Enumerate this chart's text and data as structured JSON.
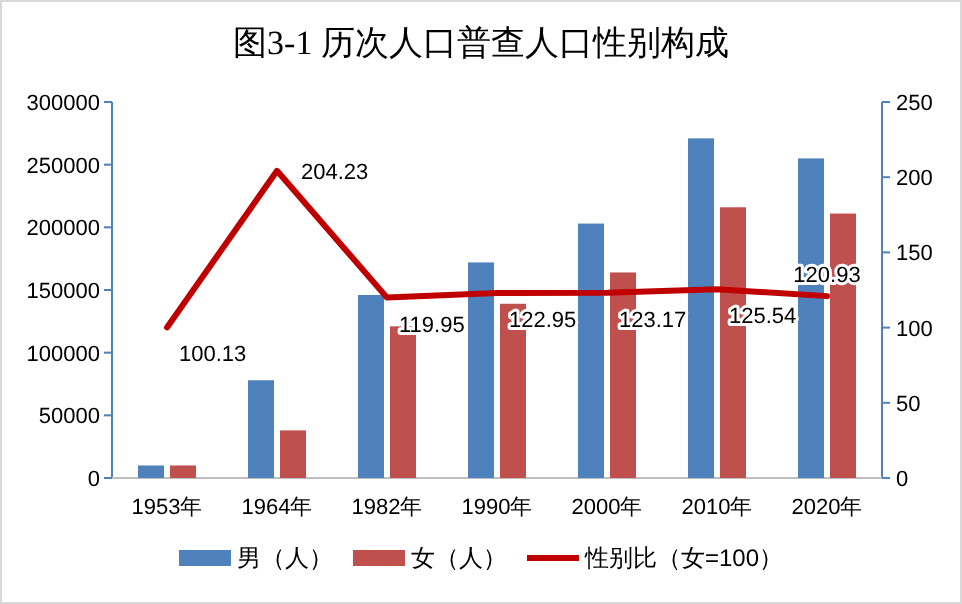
{
  "chart_data": {
    "type": "bar",
    "title": "图3-1 历次人口普查人口性别构成",
    "categories": [
      "1953年",
      "1964年",
      "1982年",
      "1990年",
      "2000年",
      "2010年",
      "2020年"
    ],
    "series": [
      {
        "name": "男（人）",
        "color": "#4f81bd",
        "values": [
          10000,
          78000,
          146000,
          172000,
          203000,
          271000,
          255000
        ]
      },
      {
        "name": "女（人）",
        "color": "#c0504d",
        "values": [
          10000,
          38000,
          121000,
          139000,
          164000,
          216000,
          211000
        ]
      },
      {
        "name": "性别比（女=100）",
        "type": "line",
        "axis": "y2",
        "color": "#c00000",
        "values": [
          100.13,
          204.23,
          119.95,
          122.95,
          123.17,
          125.54,
          120.93
        ],
        "value_labels": [
          "100.13",
          "204.23",
          "119.95",
          "122.95",
          "123.17",
          "125.54",
          "120.93"
        ]
      }
    ],
    "ylim": [
      0,
      300000
    ],
    "yticks": [
      0,
      50000,
      100000,
      150000,
      200000,
      250000,
      300000
    ],
    "y2lim": [
      0,
      250
    ],
    "y2ticks": [
      0,
      50,
      100,
      150,
      200,
      250
    ],
    "legend": "bottom"
  }
}
